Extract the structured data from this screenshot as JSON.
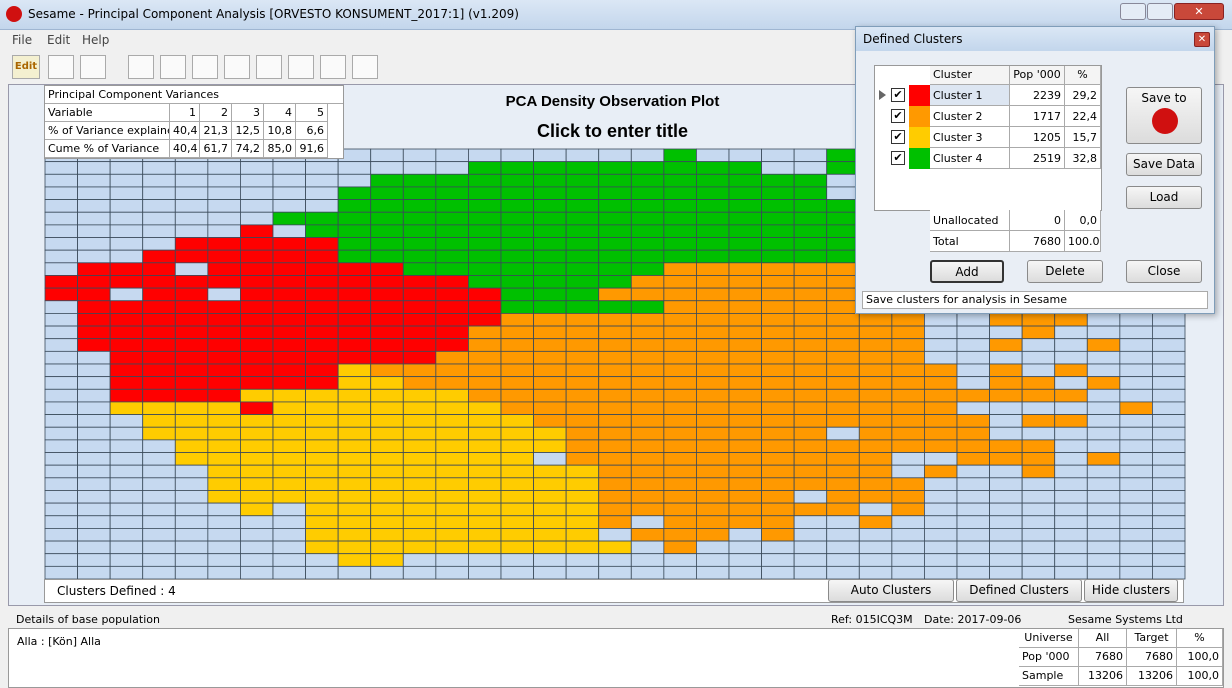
{
  "window": {
    "title": "Sesame - Principal Component Analysis [ORVESTO KONSUMENT_2017:1]  (v1.209)",
    "menu": [
      "File",
      "Edit",
      "Help"
    ],
    "toolbar_label": "Edit"
  },
  "variances": {
    "title": "Principal Component Variances",
    "rows": [
      [
        "Variable",
        "1",
        "2",
        "3",
        "4",
        "5"
      ],
      [
        "% of Variance explained",
        "40,4",
        "21,3",
        "12,5",
        "10,8",
        "6,6"
      ],
      [
        "Cume % of Variance",
        "40,4",
        "61,7",
        "74,2",
        "85,0",
        "91,6"
      ]
    ]
  },
  "plot": {
    "title": "PCA Density Observation Plot",
    "subtitle": "Click to enter title",
    "clusters_defined": "Clusters Defined : 4",
    "buttons": [
      "Auto Clusters",
      "Defined Clusters",
      "Hide clusters"
    ]
  },
  "status": {
    "left": "Details of base population",
    "ref": "Ref:  015ICQ3M",
    "date": "Date:  2017-09-06",
    "company": "Sesame Systems Ltd"
  },
  "base": {
    "text": "Alla : [Kön] Alla",
    "table": [
      [
        "Universe",
        "All",
        "Target",
        "%"
      ],
      [
        "Pop '000",
        "7680",
        "7680",
        "100,0"
      ],
      [
        "Sample",
        "13206",
        "13206",
        "100,0"
      ]
    ]
  },
  "dialog": {
    "title": "Defined Clusters",
    "header": [
      "Cluster",
      "Pop '000",
      "%"
    ],
    "clusters": [
      {
        "name": "Cluster 1",
        "color": "#ff0000",
        "pop": "2239",
        "pct": "29,2"
      },
      {
        "name": "Cluster 2",
        "color": "#ff9900",
        "pop": "1717",
        "pct": "22,4"
      },
      {
        "name": "Cluster 3",
        "color": "#ffcc00",
        "pop": "1205",
        "pct": "15,7"
      },
      {
        "name": "Cluster 4",
        "color": "#00c000",
        "pop": "2519",
        "pct": "32,8"
      }
    ],
    "unallocated": [
      "Unallocated",
      "0",
      "0,0"
    ],
    "total": [
      "Total",
      "7680",
      "100.0"
    ],
    "save_to": "Save to",
    "buttons": [
      "Save Data",
      "Load",
      "Add",
      "Delete",
      "Close"
    ],
    "status": "Save clusters for analysis in Sesame"
  }
}
